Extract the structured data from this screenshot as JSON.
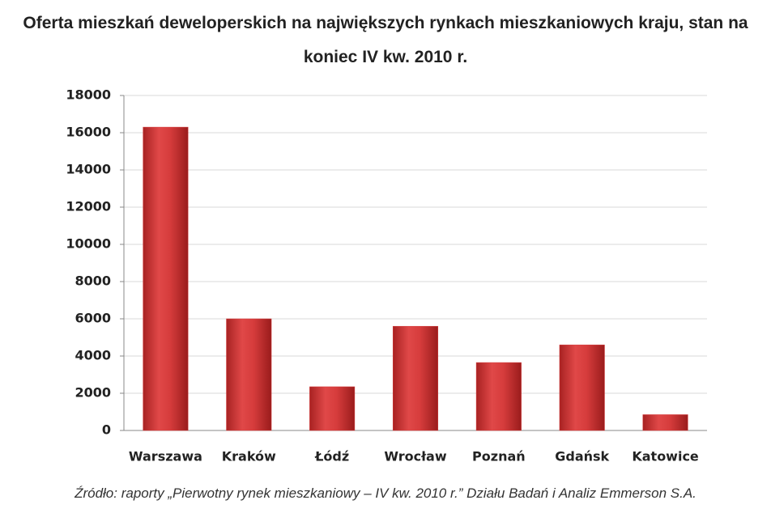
{
  "chart_data": {
    "type": "bar",
    "title": "Oferta mieszkań deweloperskich na największych rynkach mieszkaniowych kraju, stan na koniec IV kw. 2010 r.",
    "categories": [
      "Warszawa",
      "Kraków",
      "Łódź",
      "Wrocław",
      "Poznań",
      "Gdańsk",
      "Katowice"
    ],
    "values": [
      16300,
      6000,
      2350,
      5600,
      3650,
      4600,
      850
    ],
    "color": "#d63c3c",
    "ylim": [
      0,
      18000
    ],
    "yticks": [
      0,
      2000,
      4000,
      6000,
      8000,
      10000,
      12000,
      14000,
      16000,
      18000
    ],
    "grid": true,
    "source": "Źródło: raporty „Pierwotny rynek mieszkaniowy – IV kw. 2010 r.” Działu Badań i Analiz Emmerson S.A."
  }
}
